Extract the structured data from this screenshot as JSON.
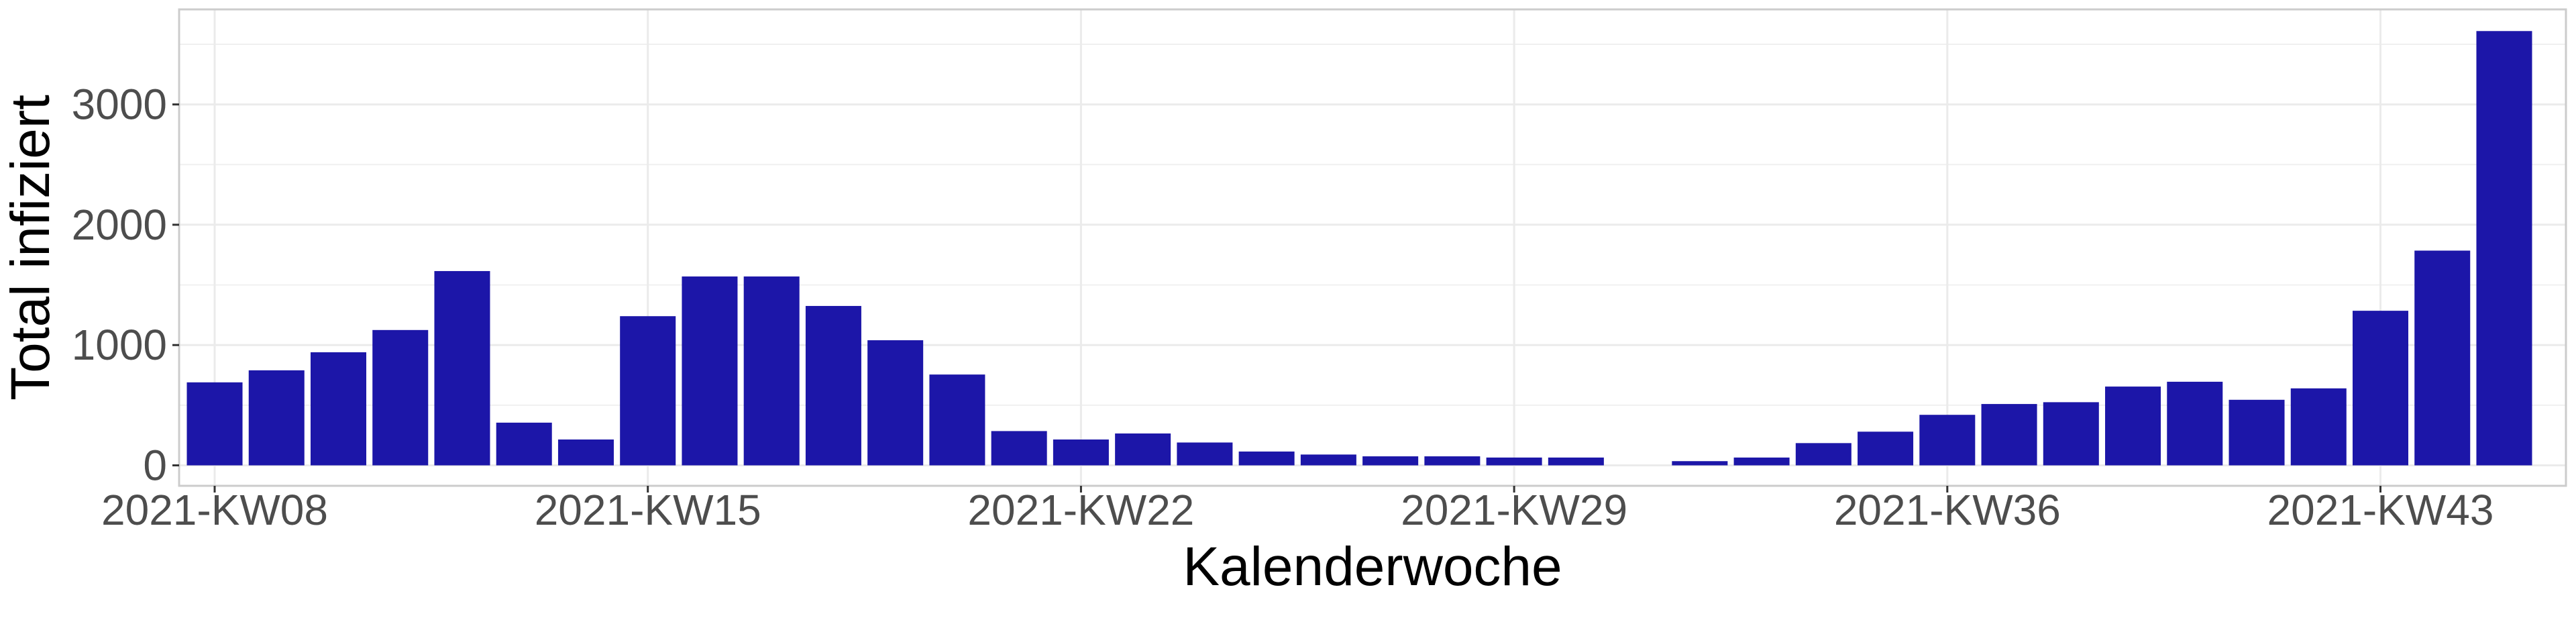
{
  "chart_data": {
    "type": "bar",
    "title": "",
    "xlabel": "Kalenderwoche",
    "ylabel": "Total infiziert",
    "categories": [
      "2021-KW08",
      "2021-KW09",
      "2021-KW10",
      "2021-KW11",
      "2021-KW12",
      "2021-KW13",
      "2021-KW14",
      "2021-KW15",
      "2021-KW16",
      "2021-KW17",
      "2021-KW18",
      "2021-KW19",
      "2021-KW20",
      "2021-KW21",
      "2021-KW22",
      "2021-KW23",
      "2021-KW24",
      "2021-KW25",
      "2021-KW26",
      "2021-KW27",
      "2021-KW28",
      "2021-KW29",
      "2021-KW30",
      "2021-KW31",
      "2021-KW32",
      "2021-KW33",
      "2021-KW34",
      "2021-KW35",
      "2021-KW36",
      "2021-KW37",
      "2021-KW38",
      "2021-KW39",
      "2021-KW40",
      "2021-KW41",
      "2021-KW42",
      "2021-KW43",
      "2021-KW44",
      "2021-KW45"
    ],
    "values": [
      690,
      790,
      940,
      1125,
      1615,
      355,
      215,
      1240,
      1570,
      1570,
      1325,
      1040,
      755,
      285,
      215,
      265,
      190,
      115,
      90,
      75,
      75,
      65,
      65,
      0,
      35,
      65,
      185,
      280,
      420,
      510,
      525,
      655,
      695,
      545,
      640,
      1285,
      1785,
      3610
    ],
    "xticks": [
      "2021-KW08",
      "2021-KW15",
      "2021-KW22",
      "2021-KW29",
      "2021-KW36",
      "2021-KW43"
    ],
    "yticks": [
      0,
      1000,
      2000,
      3000
    ],
    "ylim": [
      -170,
      3790
    ],
    "bar_color": "#1c16a8",
    "grid": true,
    "legend": "none"
  }
}
